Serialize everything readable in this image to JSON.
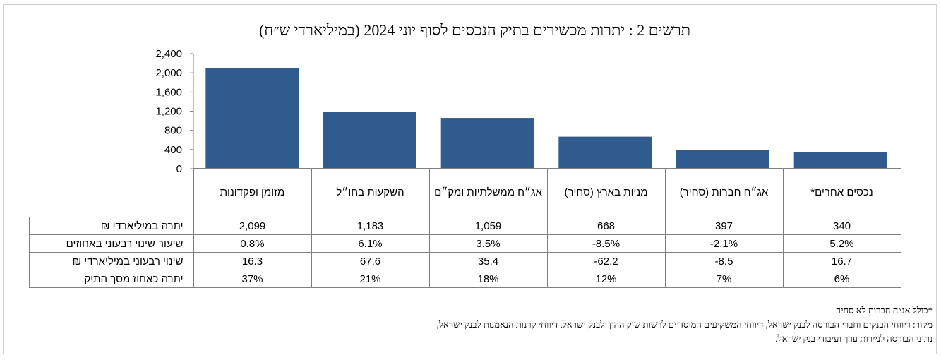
{
  "chart_data": {
    "type": "bar",
    "title": "תרשים 2 : יתרות מכשירים בתיק הנכסים לסוף יוני 2024 (במיליארדי ש״ח)",
    "categories": [
      "מזומן ופקדונות",
      "השקעות בחו״ל",
      "אג״ח ממשלתיות ומק״ם",
      "מניות בארץ (סחיר)",
      "אג״ח חברות (סחיר)",
      "נכסים אחרים*"
    ],
    "values": [
      2099,
      1183,
      1059,
      668,
      397,
      340
    ],
    "ylim": [
      0,
      2400
    ],
    "yticks": [
      "0",
      "400",
      "800",
      "1,200",
      "1,600",
      "2,000",
      "2,400"
    ],
    "bar_color": "#2f5b8f"
  },
  "table": {
    "rows": [
      {
        "label": "יתרה במיליארדי ₪",
        "values": [
          "2,099",
          "1,183",
          "1,059",
          "668",
          "397",
          "340"
        ]
      },
      {
        "label": "שיעור שינוי רבעוני באחוזים",
        "values": [
          "0.8%",
          "6.1%",
          "3.5%",
          "-8.5%",
          "-2.1%",
          "5.2%"
        ]
      },
      {
        "label": "שינוי רבעוני במיליארדי ₪",
        "values": [
          "16.3",
          "67.6",
          "35.4",
          "-62.2",
          "-8.5",
          "16.7"
        ]
      },
      {
        "label": "יתרה כאחוז מסך התיק",
        "values": [
          "37%",
          "21%",
          "18%",
          "12%",
          "7%",
          "6%"
        ]
      }
    ]
  },
  "footnotes": {
    "note": "*כולל אג״ח חברות לא סחיר",
    "source_line1": "מקור: דיווחי הבנקים וחברי הבורסה לבנק ישראל, דיווחי המשקיעים המוסדיים לרשות שוק ההון ולבנק ישראל, דיווחי קרנות הנאמנות לבנק ישראל,",
    "source_line2": "נתוני הבורסה לניירות ערך ועיבודי בנק ישראל."
  }
}
